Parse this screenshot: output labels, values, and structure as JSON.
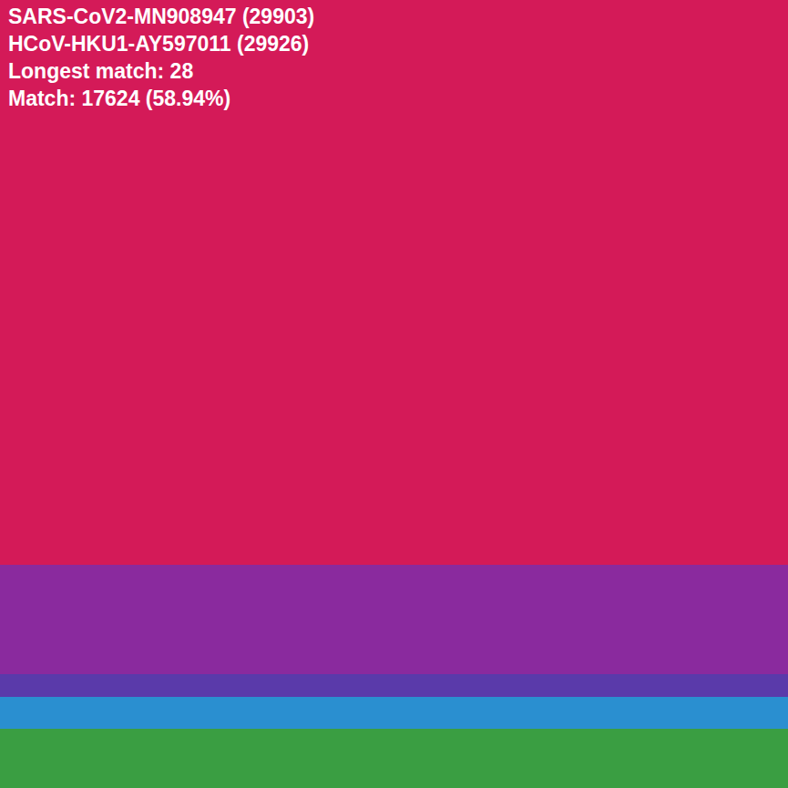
{
  "chart_data": {
    "type": "heatmap",
    "annotations": [
      "SARS-CoV2-MN908947 (29903)",
      "HCoV-HKU1-AY597011 (29926)",
      "Longest match: 28",
      "Match: 17624 (58.94%)"
    ],
    "regions": [
      {
        "start": 0,
        "end": 21433,
        "color": "#d41a58"
      },
      {
        "start": 21433,
        "end": 25581,
        "color": "#8a2a9e"
      },
      {
        "start": 25581,
        "end": 26445,
        "color": "#5a3aaa"
      },
      {
        "start": 26445,
        "end": 27656,
        "color": "#2a8fd0"
      },
      {
        "start": 27656,
        "end": 29903,
        "color": "#3a9e42"
      }
    ],
    "tick_labels": false,
    "grid": false
  }
}
